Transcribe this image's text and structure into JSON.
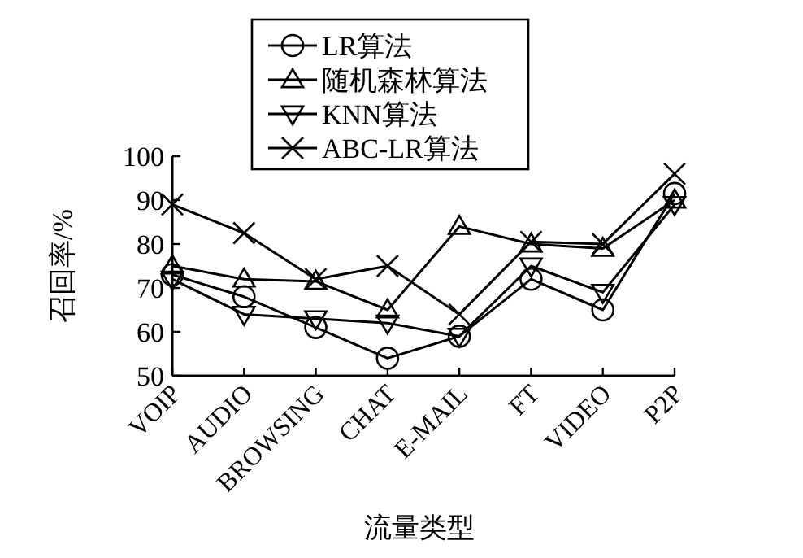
{
  "chart_data": {
    "type": "line",
    "xlabel": "流量类型",
    "ylabel": "召回率/%",
    "categories": [
      "VOIP",
      "AUDIO",
      "BROWSING",
      "CHAT",
      "E-MAIL",
      "FT",
      "VIDEO",
      "P2P"
    ],
    "ylim": [
      50,
      100
    ],
    "yticks": [
      50,
      60,
      70,
      80,
      90,
      100
    ],
    "grid": false,
    "legend": "top",
    "series": [
      {
        "name": "LR算法",
        "color": "#000000",
        "marker": "circle",
        "values": [
          73,
          68,
          61,
          54,
          59,
          72,
          65,
          91.5
        ]
      },
      {
        "name": "随机森林算法",
        "color": "#000000",
        "marker": "triangle",
        "values": [
          75,
          72,
          71.5,
          65,
          84,
          80,
          79,
          90
        ]
      },
      {
        "name": "KNN算法",
        "color": "#000000",
        "marker": "triangle-down",
        "values": [
          72,
          64,
          63,
          62,
          59,
          75,
          69,
          89
        ]
      },
      {
        "name": "ABC-LR算法",
        "color": "#000000",
        "marker": "cross",
        "values": [
          89,
          82.5,
          72,
          75,
          64,
          80.5,
          80,
          96
        ]
      }
    ]
  }
}
